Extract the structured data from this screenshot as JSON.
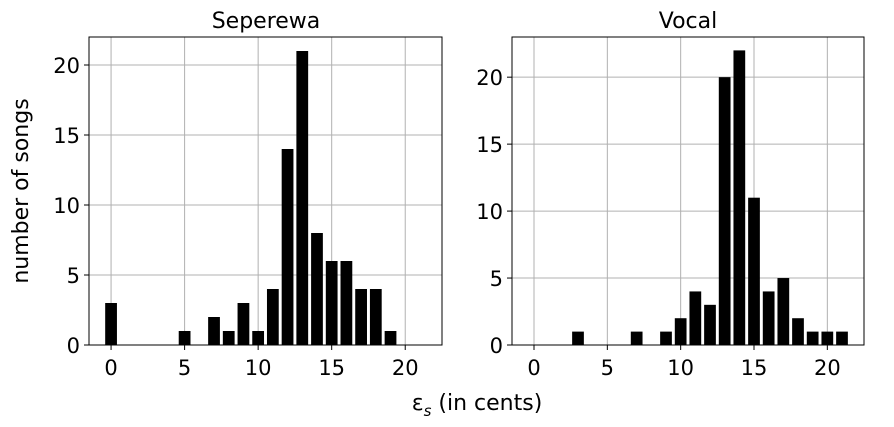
{
  "figure": {
    "xlabel_main": "ε",
    "xlabel_sub": "s",
    "xlabel_suffix": " (in cents)",
    "ylabel": "number of songs"
  },
  "style": {
    "bar_color": "#000000",
    "grid_color": "#b0b0b0",
    "frame_color": "#000000"
  },
  "chart_data": [
    {
      "type": "bar",
      "title": "Seperewa",
      "xlabel": "ε_s (in cents)",
      "ylabel": "number of songs",
      "grid": true,
      "x": [
        0,
        5,
        7,
        8,
        9,
        10,
        11,
        12,
        13,
        14,
        15,
        16,
        17,
        18,
        19
      ],
      "values": [
        3,
        1,
        2,
        1,
        3,
        1,
        4,
        14,
        21,
        8,
        6,
        6,
        4,
        4,
        1
      ],
      "xlim": [
        -1.5,
        22.5
      ],
      "ylim": [
        0,
        22
      ],
      "xticks": [
        0,
        5,
        10,
        15,
        20
      ],
      "yticks": [
        0,
        5,
        10,
        15,
        20
      ]
    },
    {
      "type": "bar",
      "title": "Vocal",
      "xlabel": "ε_s (in cents)",
      "ylabel": "",
      "grid": true,
      "x": [
        3,
        7,
        9,
        10,
        11,
        12,
        13,
        14,
        15,
        16,
        17,
        18,
        19,
        20,
        21
      ],
      "values": [
        1,
        1,
        1,
        2,
        4,
        3,
        20,
        22,
        11,
        4,
        5,
        2,
        1,
        1,
        1
      ],
      "xlim": [
        -1.5,
        22.5
      ],
      "ylim": [
        0,
        23
      ],
      "xticks": [
        0,
        5,
        10,
        15,
        20
      ],
      "yticks": [
        0,
        5,
        10,
        15,
        20
      ]
    }
  ]
}
